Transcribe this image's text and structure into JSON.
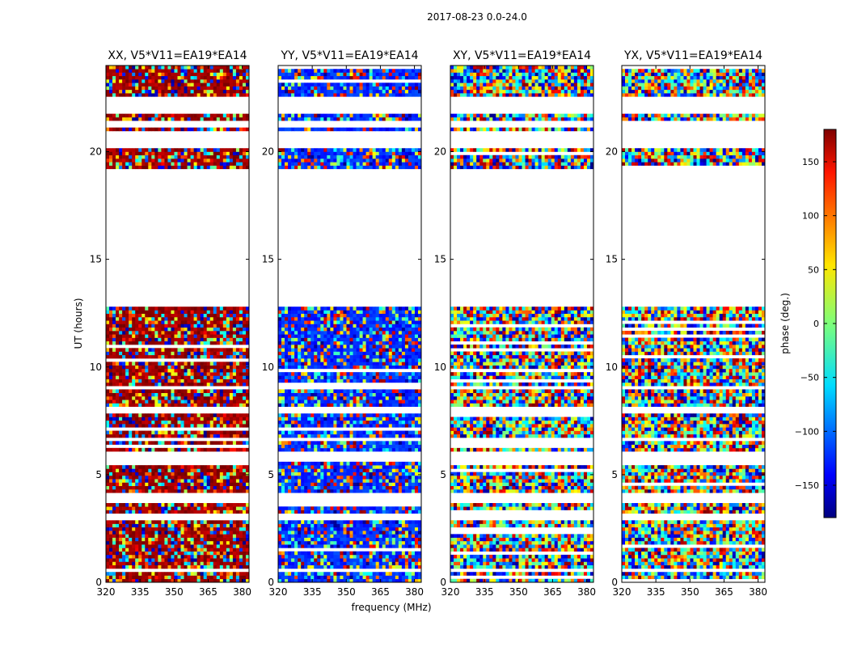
{
  "figure": {
    "suptitle": "2017-08-23 0.0-24.0"
  },
  "chart_data": {
    "type": "heatmap",
    "x_label": "frequency (MHz)",
    "y_label": "UT (hours)",
    "xlim": [
      320,
      383
    ],
    "ylim": [
      0,
      24
    ],
    "x_ticks": [
      320,
      335,
      350,
      365,
      380
    ],
    "y_ticks": [
      0,
      5,
      10,
      15,
      20
    ],
    "panels": [
      {
        "title": "XX, V5*V11=EA19*EA14",
        "dominant_phase": 170
      },
      {
        "title": "YY, V5*V11=EA19*EA14",
        "dominant_phase": -120
      },
      {
        "title": "XY, V5*V11=EA19*EA14",
        "dominant_phase": null
      },
      {
        "title": "YX, V5*V11=EA19*EA14",
        "dominant_phase": null
      }
    ],
    "flagged_ut_ranges": [
      [
        0.5,
        0.6
      ],
      [
        1.9,
        2.0
      ],
      [
        2.7,
        2.8
      ],
      [
        3.1,
        3.2
      ],
      [
        3.6,
        4.2
      ],
      [
        5.6,
        6.1
      ],
      [
        6.6,
        6.8
      ],
      [
        7.9,
        8.1
      ],
      [
        9.0,
        9.2
      ],
      [
        9.9,
        10.0
      ],
      [
        11.0,
        11.1
      ],
      [
        12.8,
        19.2
      ],
      [
        20.2,
        20.9
      ],
      [
        21.2,
        21.4
      ],
      [
        21.8,
        22.5
      ]
    ],
    "colorbar": {
      "label": "phase (deg.)",
      "range": [
        -180,
        180
      ],
      "ticks": [
        150,
        100,
        50,
        0,
        -50,
        -100,
        -150
      ],
      "tick_labels": [
        "150",
        "100",
        "50",
        "0",
        "−50",
        "−100",
        "−150"
      ]
    },
    "grid": false
  }
}
